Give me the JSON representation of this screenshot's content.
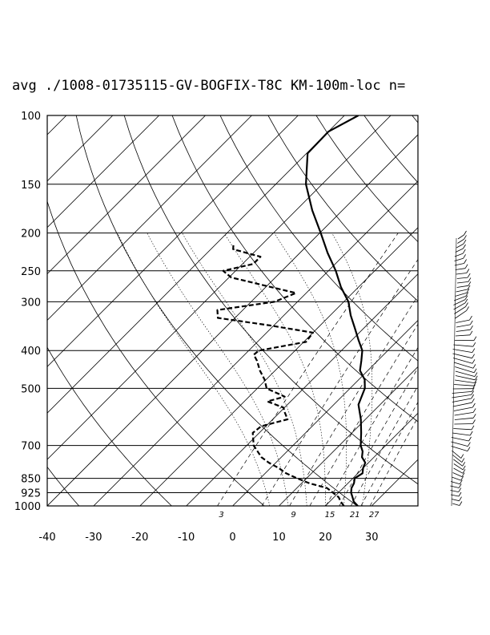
{
  "title": "avg ./1008-01735115-GV-BOGFIX-T8C KM-100m-loc n=",
  "chart_data": {
    "type": "skew-t",
    "y_axis": {
      "scale": "log",
      "pressure_ticks": [
        100,
        150,
        200,
        250,
        300,
        400,
        500,
        700,
        850,
        925,
        1000
      ],
      "range": [
        1000,
        100
      ]
    },
    "x_axis": {
      "temperature_ticks": [
        -40,
        -30,
        -20,
        -10,
        0,
        10,
        20,
        30
      ],
      "range": [
        -40,
        40
      ]
    },
    "mixing_ratio_labels": [
      "3",
      "9",
      "15",
      "21",
      "27"
    ],
    "series": [
      {
        "role": "temperature",
        "style": "solid",
        "points": [
          [
            1000,
            27.0
          ],
          [
            975,
            25.2
          ],
          [
            950,
            24.0
          ],
          [
            925,
            22.7
          ],
          [
            900,
            21.8
          ],
          [
            875,
            21.3
          ],
          [
            850,
            20.4
          ],
          [
            825,
            21.0
          ],
          [
            800,
            20.0
          ],
          [
            775,
            19.3
          ],
          [
            750,
            17.4
          ],
          [
            725,
            16.3
          ],
          [
            700,
            14.6
          ],
          [
            650,
            12.0
          ],
          [
            600,
            9.0
          ],
          [
            550,
            5.3
          ],
          [
            500,
            3.2
          ],
          [
            475,
            1.3
          ],
          [
            450,
            -1.7
          ],
          [
            425,
            -3.5
          ],
          [
            400,
            -5.5
          ],
          [
            375,
            -8.7
          ],
          [
            350,
            -12.0
          ],
          [
            325,
            -15.6
          ],
          [
            300,
            -19.0
          ],
          [
            275,
            -23.8
          ],
          [
            250,
            -28.4
          ],
          [
            225,
            -34.0
          ],
          [
            200,
            -39.8
          ],
          [
            175,
            -46.5
          ],
          [
            150,
            -53.5
          ],
          [
            125,
            -59.8
          ],
          [
            110,
            -60.0
          ],
          [
            100,
            -57.0
          ]
        ]
      },
      {
        "role": "dew point",
        "style": "dashed",
        "points": [
          [
            1000,
            24.0
          ],
          [
            975,
            22.4
          ],
          [
            950,
            21.0
          ],
          [
            925,
            18.8
          ],
          [
            900,
            16.5
          ],
          [
            875,
            11.7
          ],
          [
            850,
            8.0
          ],
          [
            825,
            4.5
          ],
          [
            800,
            1.8
          ],
          [
            775,
            -1.5
          ],
          [
            750,
            -4.3
          ],
          [
            700,
            -8.5
          ],
          [
            650,
            -11.4
          ],
          [
            625,
            -11.0
          ],
          [
            600,
            -6.8
          ],
          [
            575,
            -9.0
          ],
          [
            560,
            -10.2
          ],
          [
            540,
            -15.0
          ],
          [
            525,
            -12.3
          ],
          [
            500,
            -18.0
          ],
          [
            475,
            -20.3
          ],
          [
            450,
            -23.3
          ],
          [
            425,
            -26.0
          ],
          [
            410,
            -28.0
          ],
          [
            400,
            -27.8
          ],
          [
            380,
            -19.5
          ],
          [
            360,
            -20.0
          ],
          [
            345,
            -30.8
          ],
          [
            330,
            -43.7
          ],
          [
            315,
            -45.5
          ],
          [
            300,
            -35.0
          ],
          [
            285,
            -32.2
          ],
          [
            260,
            -49.5
          ],
          [
            250,
            -52.7
          ],
          [
            240,
            -47.7
          ],
          [
            230,
            -47.7
          ],
          [
            220,
            -55.2
          ],
          [
            215,
            -56.0
          ]
        ]
      }
    ],
    "wind_barbs": "profile at right margin"
  }
}
